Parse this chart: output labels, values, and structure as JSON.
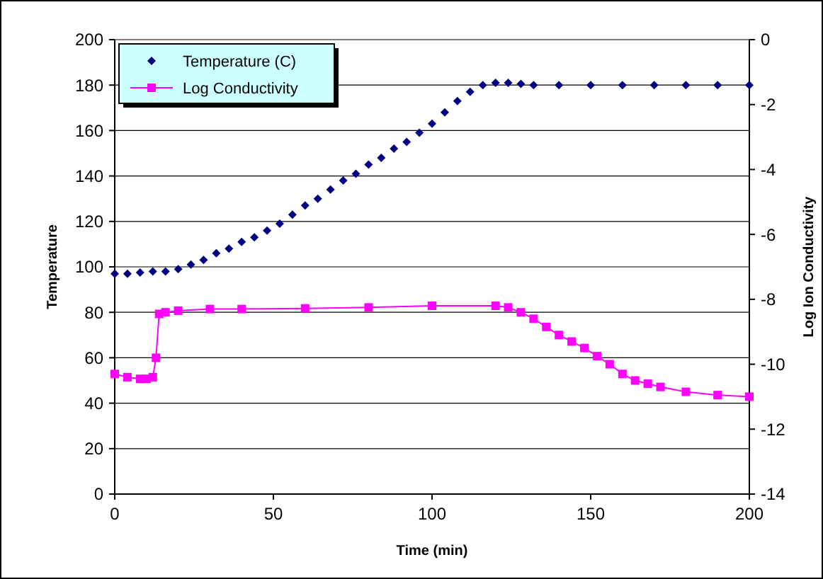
{
  "chart_data": {
    "type": "line",
    "xlabel": "Time (min)",
    "ylabel": "Temperature",
    "y2label": "Log Ion Conductivity",
    "xlim": [
      0,
      200
    ],
    "xticks": [
      0,
      50,
      100,
      150,
      200
    ],
    "ylim": [
      0,
      200
    ],
    "yticks": [
      0,
      20,
      40,
      60,
      80,
      100,
      120,
      140,
      160,
      180,
      200
    ],
    "y2lim": [
      -14,
      0
    ],
    "y2ticks": [
      -14,
      -12,
      -10,
      -8,
      -6,
      -4,
      -2,
      0
    ],
    "grid": "y",
    "legend": "top left",
    "series": [
      {
        "name": "Temperature (C)",
        "type": "scatter",
        "marker": "diamond",
        "color": "#000080",
        "x": [
          0,
          4,
          8,
          12,
          16,
          20,
          24,
          28,
          32,
          36,
          40,
          44,
          48,
          52,
          56,
          60,
          64,
          68,
          72,
          76,
          80,
          84,
          88,
          92,
          96,
          100,
          104,
          108,
          112,
          116,
          120,
          124,
          128,
          132,
          140,
          150,
          160,
          170,
          180,
          190,
          200
        ],
        "values": [
          97,
          97,
          97.5,
          98,
          98,
          99,
          101,
          103,
          106,
          108,
          111,
          113,
          116,
          119,
          123,
          127,
          130,
          134,
          138,
          141,
          145,
          148,
          152,
          155,
          159,
          163,
          168,
          173,
          177,
          180,
          181,
          181,
          180.5,
          180,
          180,
          180,
          180,
          180,
          180,
          180,
          180
        ]
      },
      {
        "name": "Log Conductivity",
        "marker": "square",
        "axis": "y2",
        "color": "#ff00ff",
        "x": [
          0,
          4,
          8,
          10,
          12,
          13,
          14,
          16,
          20,
          30,
          40,
          60,
          80,
          100,
          120,
          124,
          128,
          132,
          136,
          140,
          144,
          148,
          152,
          156,
          160,
          164,
          168,
          172,
          180,
          190,
          200
        ],
        "values": [
          -10.3,
          -10.4,
          -10.45,
          -10.45,
          -10.4,
          -9.8,
          -8.45,
          -8.4,
          -8.35,
          -8.3,
          -8.3,
          -8.28,
          -8.25,
          -8.2,
          -8.2,
          -8.25,
          -8.4,
          -8.6,
          -8.85,
          -9.1,
          -9.3,
          -9.5,
          -9.75,
          -10.0,
          -10.3,
          -10.5,
          -10.6,
          -10.7,
          -10.85,
          -10.95,
          -11.0
        ]
      }
    ]
  }
}
